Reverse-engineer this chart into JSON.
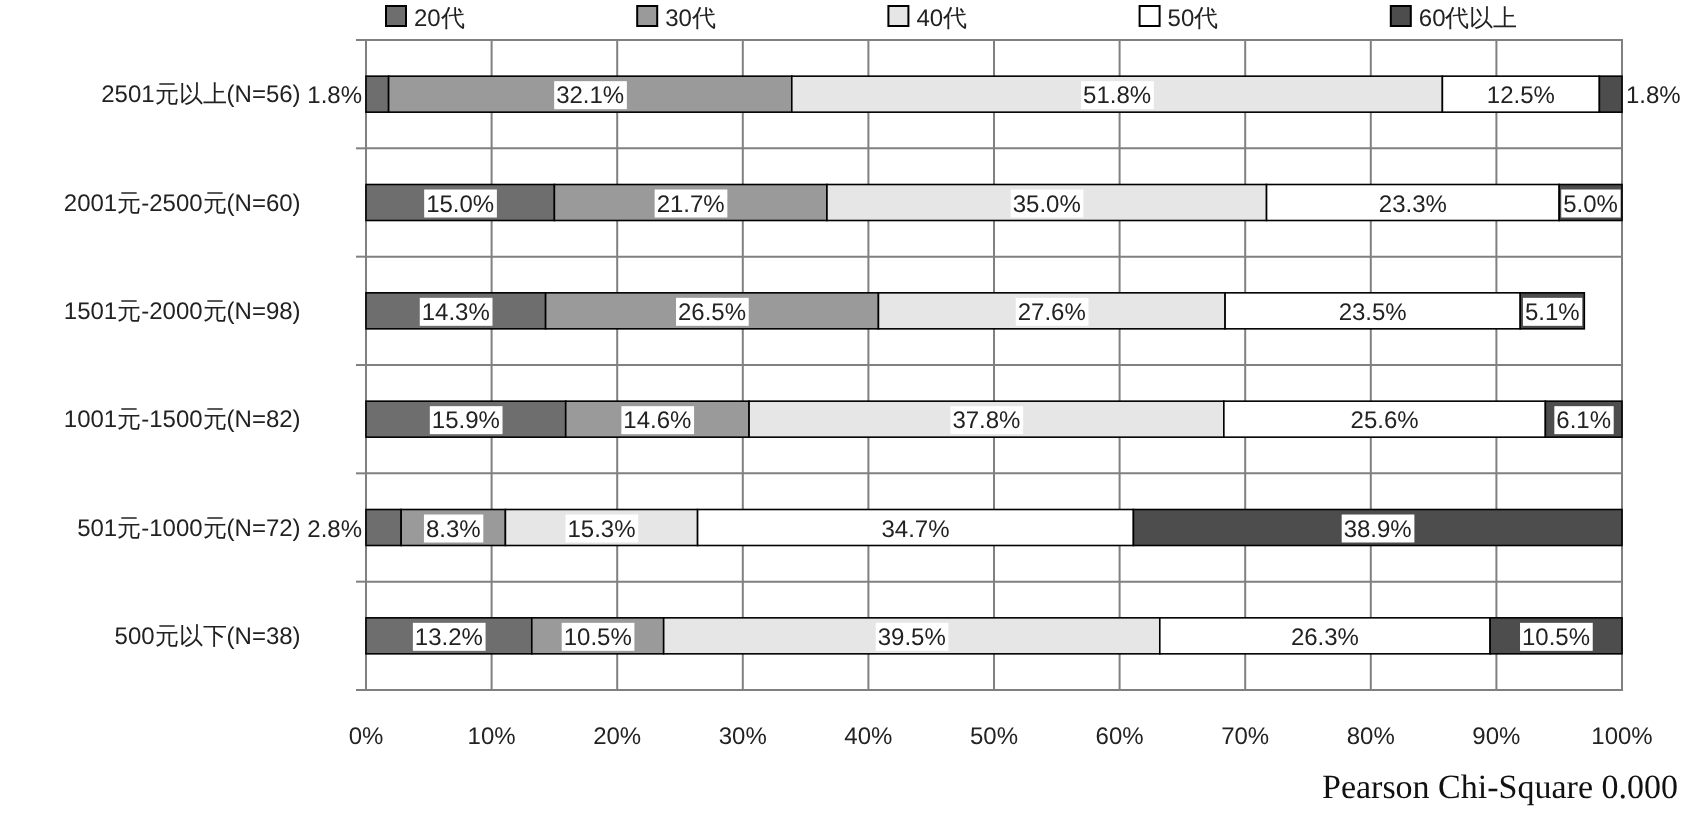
{
  "chart_data": {
    "type": "bar",
    "orientation": "horizontal",
    "stacked": true,
    "categories": [
      "2501元以上(N=56)",
      "2001元-2500元(N=60)",
      "1501元-2000元(N=98)",
      "1001元-1500元(N=82)",
      "501元-1000元(N=72)",
      "500元以下(N=38)"
    ],
    "series": [
      {
        "name": "20代",
        "color": "#6e6e6e",
        "values": [
          1.8,
          15.0,
          14.3,
          15.9,
          2.8,
          13.2
        ],
        "value_labels": [
          "1.8%",
          "15.0%",
          "14.3%",
          "15.9%",
          "2.8%",
          "13.2%"
        ]
      },
      {
        "name": "30代",
        "color": "#9a9a9a",
        "values": [
          32.1,
          21.7,
          26.5,
          14.6,
          8.3,
          10.5
        ],
        "value_labels": [
          "32.1%",
          "21.7%",
          "26.5%",
          "14.6%",
          "8.3%",
          "10.5%"
        ]
      },
      {
        "name": "40代",
        "color": "#e6e6e6",
        "values": [
          51.8,
          35.0,
          27.6,
          37.8,
          15.3,
          39.5
        ],
        "value_labels": [
          "51.8%",
          "35.0%",
          "27.6%",
          "37.8%",
          "15.3%",
          "39.5%"
        ]
      },
      {
        "name": "50代",
        "color": "#ffffff",
        "values": [
          12.5,
          23.3,
          23.5,
          25.6,
          34.7,
          26.3
        ],
        "value_labels": [
          "12.5%",
          "23.3%",
          "23.5%",
          "25.6%",
          "34.7%",
          "26.3%"
        ]
      },
      {
        "name": "60代以上",
        "color": "#4d4d4d",
        "values": [
          1.8,
          5.0,
          5.1,
          6.1,
          38.9,
          10.5
        ],
        "value_labels": [
          "1.8%",
          "5.0%",
          "5.1%",
          "6.1%",
          "38.9%",
          "10.5%"
        ]
      }
    ],
    "xlim": [
      0,
      100
    ],
    "xticks": [
      {
        "value": 0,
        "label": "0%"
      },
      {
        "value": 10,
        "label": "10%"
      },
      {
        "value": 20,
        "label": "20%"
      },
      {
        "value": 30,
        "label": "30%"
      },
      {
        "value": 40,
        "label": "40%"
      },
      {
        "value": 50,
        "label": "50%"
      },
      {
        "value": 60,
        "label": "60%"
      },
      {
        "value": 70,
        "label": "70%"
      },
      {
        "value": 80,
        "label": "80%"
      },
      {
        "value": 90,
        "label": "90%"
      },
      {
        "value": 100,
        "label": "100%"
      }
    ],
    "grid": true,
    "legend": "top",
    "annotations": [
      "Pearson Chi-Square 0.000"
    ]
  }
}
